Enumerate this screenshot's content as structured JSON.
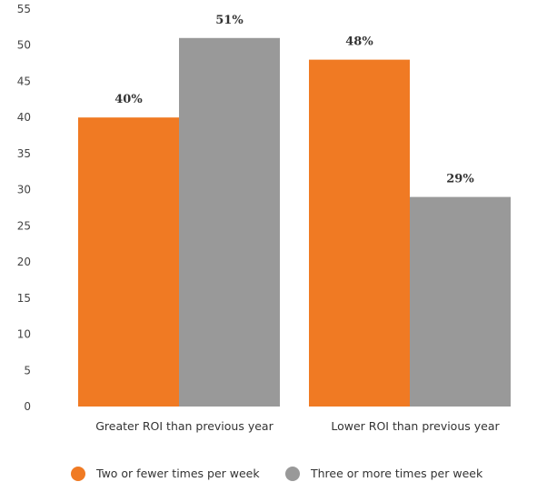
{
  "chart_data": {
    "type": "bar",
    "categories": [
      "Greater ROI than previous year",
      "Lower ROI than previous year"
    ],
    "series": [
      {
        "name": "Two or fewer times per week",
        "values": [
          40,
          48
        ],
        "labels": [
          "40%",
          "48%"
        ],
        "color": "#f07a23"
      },
      {
        "name": "Three or more times per week",
        "values": [
          51,
          29
        ],
        "labels": [
          "51%",
          "29%"
        ],
        "color": "#999999"
      }
    ],
    "yticks": [
      0,
      5,
      10,
      15,
      20,
      25,
      30,
      35,
      40,
      45,
      50,
      55
    ],
    "ylim": [
      0,
      55
    ],
    "grid": false,
    "legend_position": "bottom"
  }
}
